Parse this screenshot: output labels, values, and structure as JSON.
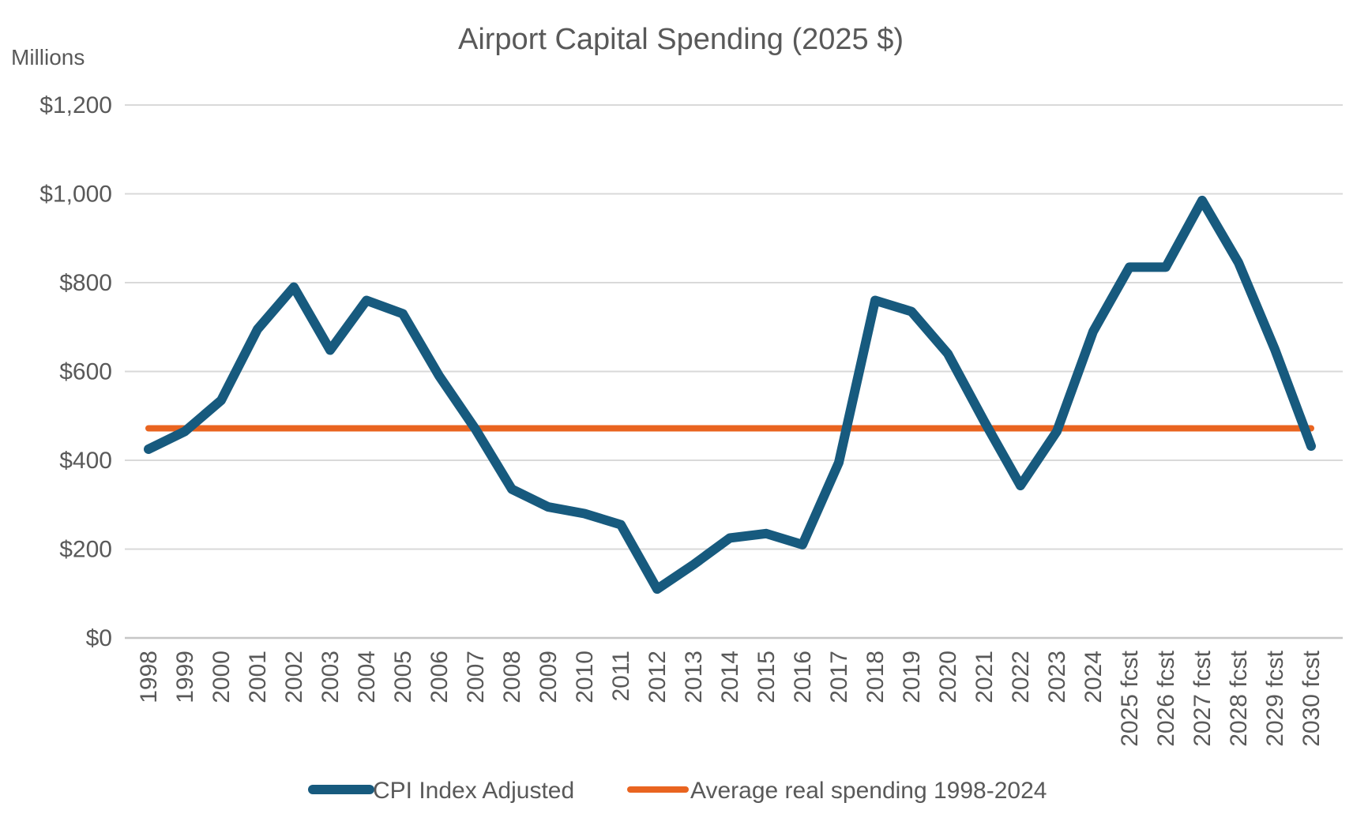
{
  "title": "Airport Capital Spending (2025 $)",
  "unit_label": "Millions",
  "colors": {
    "cpi_line": "#175A7E",
    "average_line": "#E96420",
    "gridline": "#D9D9D9",
    "axis_line": "#C6C6C6",
    "text": "#595959"
  },
  "legend": {
    "cpi_label": "CPI Index Adjusted",
    "average_label": "Average real spending 1998-2024"
  },
  "chart_data": {
    "type": "line",
    "title": "Airport Capital Spending (2025 $)",
    "xlabel": "",
    "ylabel": "Millions",
    "ylim": [
      0,
      1200
    ],
    "ytick_interval": 200,
    "ytick_labels": [
      "$0",
      "$200",
      "$400",
      "$600",
      "$800",
      "$1,000",
      "$1,200"
    ],
    "grid": true,
    "legend_position": "bottom",
    "categories": [
      "1998",
      "1999",
      "2000",
      "2001",
      "2002",
      "2003",
      "2004",
      "2005",
      "2006",
      "2007",
      "2008",
      "2009",
      "2010",
      "2011",
      "2012",
      "2013",
      "2014",
      "2015",
      "2016",
      "2017",
      "2018",
      "2019",
      "2020",
      "2021",
      "2022",
      "2023",
      "2024",
      "2025 fcst",
      "2026 fcst",
      "2027 fcst",
      "2028 fcst",
      "2029 fcst",
      "2030 fcst"
    ],
    "series": [
      {
        "name": "CPI Index Adjusted",
        "color": "#175A7E",
        "values": [
          425,
          465,
          535,
          695,
          790,
          648,
          760,
          730,
          590,
          470,
          335,
          295,
          280,
          255,
          110,
          165,
          225,
          235,
          210,
          395,
          760,
          735,
          640,
          488,
          343,
          465,
          690,
          835,
          835,
          985,
          845,
          650,
          432
        ]
      },
      {
        "name": "Average real spending 1998-2024",
        "color": "#E96420",
        "style": "constant-horizontal-line",
        "value": 472,
        "span_categories": [
          "1998",
          "2030 fcst"
        ]
      }
    ]
  }
}
